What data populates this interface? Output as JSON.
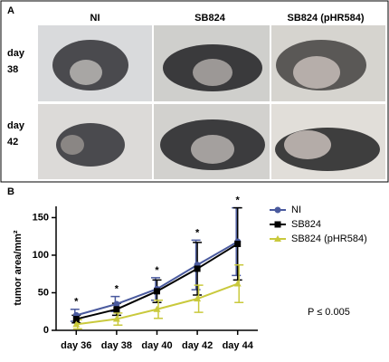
{
  "panel_a": {
    "label": "A",
    "columns": [
      "NI",
      "SB824",
      "SB824 (pHR584)"
    ],
    "rows": [
      "day 38",
      "day 42"
    ]
  },
  "chart_data": {
    "type": "line",
    "panel_label": "B",
    "y_label": "tumor area/mm²",
    "categories": [
      "day 36",
      "day 38",
      "day 40",
      "day 42",
      "day 44"
    ],
    "series": [
      {
        "name": "NI",
        "color": "#4a5a9e",
        "marker": "circle",
        "values": [
          20,
          35,
          55,
          87,
          118
        ],
        "errors": [
          8,
          10,
          15,
          33,
          45
        ]
      },
      {
        "name": "SB824",
        "color": "#000000",
        "marker": "square",
        "values": [
          15,
          28,
          52,
          82,
          115
        ],
        "errors": [
          5,
          8,
          15,
          35,
          48
        ]
      },
      {
        "name": "SB824 (pHR584)",
        "color": "#c9c93c",
        "marker": "triangle",
        "values": [
          8,
          15,
          28,
          42,
          62
        ],
        "errors": [
          6,
          8,
          12,
          18,
          25
        ]
      }
    ],
    "significance": [
      "*",
      "*",
      "*",
      "*",
      "*"
    ],
    "annotation": "P ≤ 0.005",
    "ylim": [
      0,
      165
    ],
    "yticks": [
      0,
      50,
      100,
      150
    ],
    "legend": "right"
  }
}
